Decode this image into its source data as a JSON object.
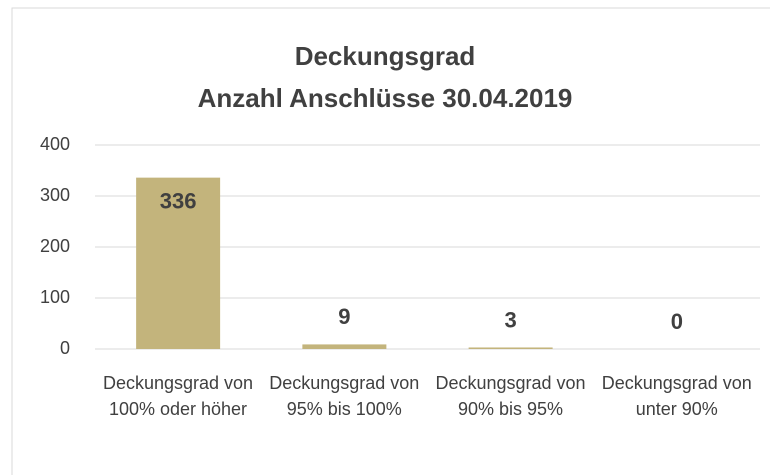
{
  "chart_data": {
    "type": "bar",
    "title": "Deckungsgrad",
    "subtitle": "Anzahl Anschlüsse 30.04.2019",
    "categories": [
      "Deckungsgrad von 100% oder höher",
      "Deckungsgrad von 95% bis 100%",
      "Deckungsgrad von 90% bis 95%",
      "Deckungsgrad von unter 90%"
    ],
    "values": [
      336,
      9,
      3,
      0
    ],
    "color": "#c3b47c",
    "ylim": [
      0,
      400
    ],
    "yticks": [
      0,
      100,
      200,
      300,
      400
    ],
    "grid": true
  }
}
